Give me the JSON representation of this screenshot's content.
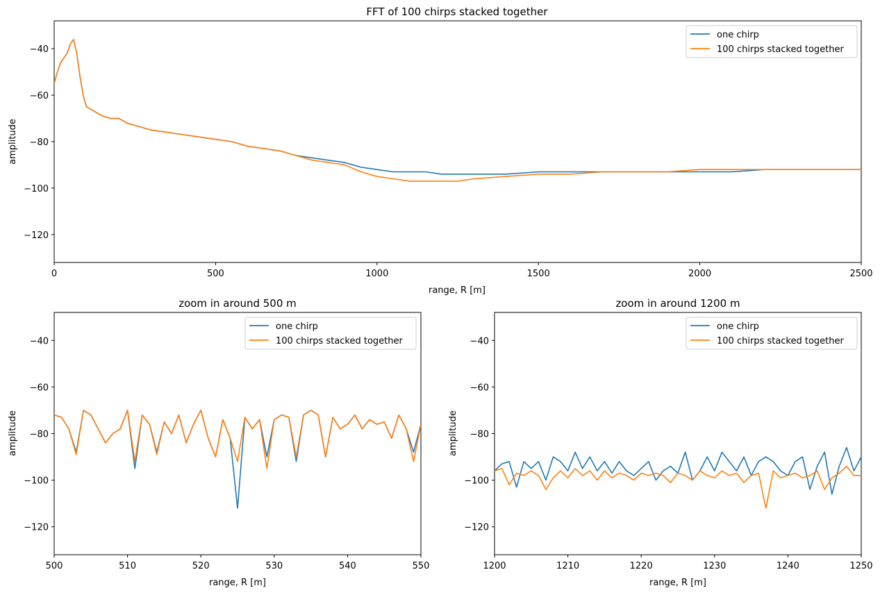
{
  "colors": {
    "one_chirp": "#1f77b4",
    "stacked": "#ff7f0e"
  },
  "chart_data": [
    {
      "type": "line",
      "title": "FFT of 100 chirps stacked together",
      "xlabel": "range, R [m]",
      "ylabel": "amplitude",
      "xlim": [
        0,
        2500
      ],
      "ylim": [
        -132,
        -28
      ],
      "xticks": [
        "0",
        "500",
        "1000",
        "1500",
        "2000",
        "2500"
      ],
      "yticks": [
        "−40",
        "−60",
        "−80",
        "−100",
        "−120"
      ],
      "legend_position": "top-right",
      "series": [
        {
          "name": "one chirp",
          "x": [
            0,
            10,
            20,
            30,
            40,
            50,
            60,
            70,
            80,
            90,
            100,
            125,
            150,
            175,
            200,
            225,
            250,
            275,
            300,
            350,
            400,
            450,
            500,
            550,
            600,
            650,
            700,
            750,
            800,
            850,
            900,
            950,
            1000,
            1050,
            1100,
            1150,
            1200,
            1250,
            1300,
            1400,
            1500,
            1600,
            1700,
            1800,
            1900,
            2000,
            2100,
            2200,
            2300,
            2400,
            2500
          ],
          "y": [
            -55,
            -50,
            -46,
            -44,
            -42,
            -38,
            -36,
            -42,
            -52,
            -60,
            -65,
            -67,
            -69,
            -70,
            -70,
            -72,
            -73,
            -74,
            -75,
            -76,
            -77,
            -78,
            -79,
            -80,
            -82,
            -83,
            -84,
            -86,
            -87,
            -88,
            -89,
            -91,
            -92,
            -93,
            -93,
            -93,
            -94,
            -94,
            -94,
            -94,
            -93,
            -93,
            -93,
            -93,
            -93,
            -93,
            -93,
            -92,
            -92,
            -92,
            -92
          ]
        },
        {
          "name": "100 chirps stacked together",
          "x": [
            0,
            10,
            20,
            30,
            40,
            50,
            60,
            70,
            80,
            90,
            100,
            125,
            150,
            175,
            200,
            225,
            250,
            275,
            300,
            350,
            400,
            450,
            500,
            550,
            600,
            650,
            700,
            750,
            800,
            850,
            900,
            950,
            1000,
            1050,
            1100,
            1150,
            1200,
            1250,
            1300,
            1400,
            1500,
            1600,
            1700,
            1800,
            1900,
            2000,
            2100,
            2200,
            2300,
            2400,
            2500
          ],
          "y": [
            -55,
            -50,
            -46,
            -44,
            -42,
            -38,
            -36,
            -42,
            -52,
            -60,
            -65,
            -67,
            -69,
            -70,
            -70,
            -72,
            -73,
            -74,
            -75,
            -76,
            -77,
            -78,
            -79,
            -80,
            -82,
            -83,
            -84,
            -86,
            -88,
            -89,
            -90,
            -93,
            -95,
            -96,
            -97,
            -97,
            -97,
            -97,
            -96,
            -95,
            -94,
            -94,
            -93,
            -93,
            -93,
            -92,
            -92,
            -92,
            -92,
            -92,
            -92
          ]
        }
      ]
    },
    {
      "type": "line",
      "title": "zoom in around 500 m",
      "xlabel": "range, R [m]",
      "ylabel": "amplitude",
      "xlim": [
        500,
        550
      ],
      "ylim": [
        -132,
        -28
      ],
      "xticks": [
        "500",
        "510",
        "520",
        "530",
        "540",
        "550"
      ],
      "yticks": [
        "−40",
        "−60",
        "−80",
        "−100",
        "−120"
      ],
      "legend_position": "top-right",
      "series": [
        {
          "name": "one chirp",
          "x": [
            500,
            501,
            502,
            503,
            504,
            505,
            506,
            507,
            508,
            509,
            510,
            511,
            512,
            513,
            514,
            515,
            516,
            517,
            518,
            519,
            520,
            521,
            522,
            523,
            524,
            525,
            526,
            527,
            528,
            529,
            530,
            531,
            532,
            533,
            534,
            535,
            536,
            537,
            538,
            539,
            540,
            541,
            542,
            543,
            544,
            545,
            546,
            547,
            548,
            549,
            550
          ],
          "y": [
            -72,
            -73,
            -78,
            -88,
            -70,
            -72,
            -78,
            -84,
            -80,
            -78,
            -70,
            -95,
            -72,
            -76,
            -88,
            -75,
            -80,
            -72,
            -84,
            -76,
            -70,
            -82,
            -90,
            -74,
            -82,
            -112,
            -73,
            -78,
            -74,
            -90,
            -74,
            -72,
            -73,
            -92,
            -72,
            -70,
            -72,
            -90,
            -73,
            -78,
            -76,
            -72,
            -78,
            -74,
            -76,
            -75,
            -82,
            -72,
            -78,
            -88,
            -76
          ]
        },
        {
          "name": "100 chirps stacked together",
          "x": [
            500,
            501,
            502,
            503,
            504,
            505,
            506,
            507,
            508,
            509,
            510,
            511,
            512,
            513,
            514,
            515,
            516,
            517,
            518,
            519,
            520,
            521,
            522,
            523,
            524,
            525,
            526,
            527,
            528,
            529,
            530,
            531,
            532,
            533,
            534,
            535,
            536,
            537,
            538,
            539,
            540,
            541,
            542,
            543,
            544,
            545,
            546,
            547,
            548,
            549,
            550
          ],
          "y": [
            -72,
            -73,
            -78,
            -89,
            -70,
            -72,
            -78,
            -84,
            -80,
            -78,
            -70,
            -92,
            -72,
            -76,
            -89,
            -75,
            -80,
            -72,
            -84,
            -76,
            -70,
            -82,
            -90,
            -74,
            -82,
            -92,
            -73,
            -78,
            -74,
            -95,
            -74,
            -72,
            -73,
            -90,
            -72,
            -70,
            -72,
            -90,
            -73,
            -78,
            -76,
            -72,
            -78,
            -74,
            -76,
            -75,
            -82,
            -72,
            -78,
            -92,
            -76
          ]
        }
      ]
    },
    {
      "type": "line",
      "title": "zoom in around 1200 m",
      "xlabel": "range, R [m]",
      "ylabel": "amplitude",
      "xlim": [
        1200,
        1250
      ],
      "ylim": [
        -132,
        -28
      ],
      "xticks": [
        "1200",
        "1210",
        "1220",
        "1230",
        "1240",
        "1250"
      ],
      "yticks": [
        "−40",
        "−60",
        "−80",
        "−100",
        "−120"
      ],
      "legend_position": "top-right",
      "series": [
        {
          "name": "one chirp",
          "x": [
            1200,
            1201,
            1202,
            1203,
            1204,
            1205,
            1206,
            1207,
            1208,
            1209,
            1210,
            1211,
            1212,
            1213,
            1214,
            1215,
            1216,
            1217,
            1218,
            1219,
            1220,
            1221,
            1222,
            1223,
            1224,
            1225,
            1226,
            1227,
            1228,
            1229,
            1230,
            1231,
            1232,
            1233,
            1234,
            1235,
            1236,
            1237,
            1238,
            1239,
            1240,
            1241,
            1242,
            1243,
            1244,
            1245,
            1246,
            1247,
            1248,
            1249,
            1250
          ],
          "y": [
            -96,
            -93,
            -92,
            -103,
            -92,
            -95,
            -92,
            -100,
            -90,
            -92,
            -96,
            -88,
            -95,
            -90,
            -96,
            -92,
            -97,
            -92,
            -96,
            -98,
            -95,
            -92,
            -100,
            -96,
            -94,
            -97,
            -88,
            -100,
            -96,
            -90,
            -96,
            -88,
            -92,
            -96,
            -90,
            -98,
            -92,
            -90,
            -92,
            -96,
            -98,
            -92,
            -90,
            -104,
            -94,
            -88,
            -106,
            -94,
            -86,
            -96,
            -90
          ]
        },
        {
          "name": "100 chirps stacked together",
          "x": [
            1200,
            1201,
            1202,
            1203,
            1204,
            1205,
            1206,
            1207,
            1208,
            1209,
            1210,
            1211,
            1212,
            1213,
            1214,
            1215,
            1216,
            1217,
            1218,
            1219,
            1220,
            1221,
            1222,
            1223,
            1224,
            1225,
            1226,
            1227,
            1228,
            1229,
            1230,
            1231,
            1232,
            1233,
            1234,
            1235,
            1236,
            1237,
            1238,
            1239,
            1240,
            1241,
            1242,
            1243,
            1244,
            1245,
            1246,
            1247,
            1248,
            1249,
            1250
          ],
          "y": [
            -96,
            -95,
            -102,
            -97,
            -98,
            -96,
            -98,
            -104,
            -99,
            -96,
            -99,
            -95,
            -98,
            -96,
            -100,
            -96,
            -99,
            -97,
            -98,
            -100,
            -97,
            -98,
            -97,
            -98,
            -101,
            -97,
            -98,
            -100,
            -96,
            -98,
            -99,
            -96,
            -98,
            -97,
            -101,
            -98,
            -97,
            -112,
            -96,
            -99,
            -98,
            -97,
            -99,
            -98,
            -96,
            -104,
            -99,
            -97,
            -94,
            -98,
            -98
          ]
        }
      ]
    }
  ]
}
